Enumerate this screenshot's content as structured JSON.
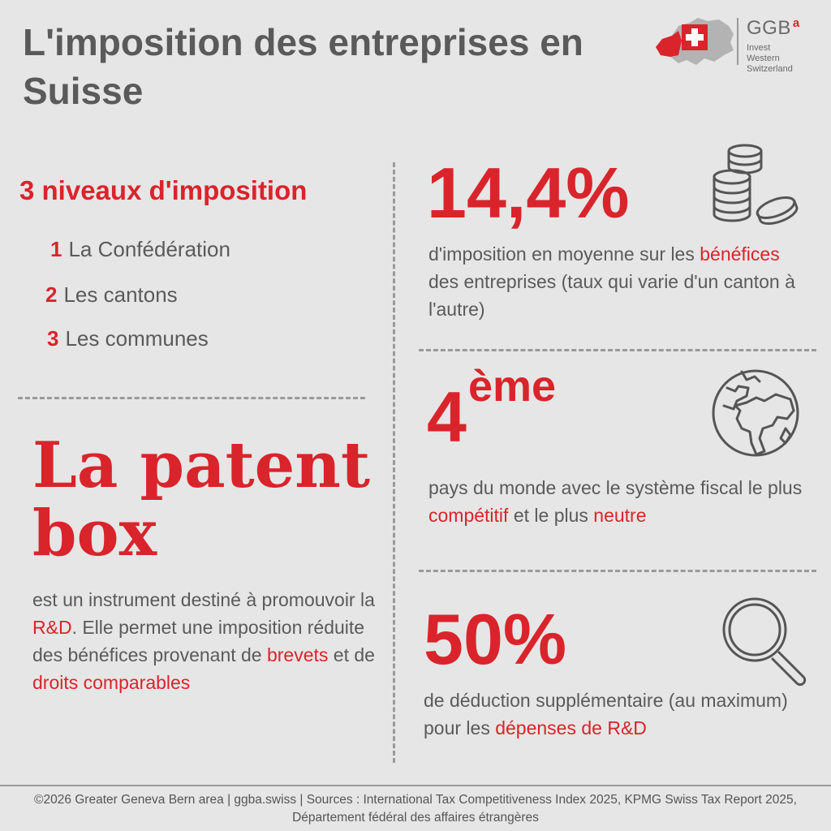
{
  "title": "L'imposition des entreprises en Suisse",
  "logo": {
    "name": "GGB",
    "superscript": "a",
    "tagline": [
      "Invest",
      "Western",
      "Switzerland"
    ]
  },
  "levels": {
    "heading": "3 niveaux d'imposition",
    "items": [
      {
        "num": "1",
        "label": "La Confédération"
      },
      {
        "num": "2",
        "label": "Les cantons"
      },
      {
        "num": "3",
        "label": "Les communes"
      }
    ]
  },
  "patent": {
    "line1": "La patent",
    "line2": "box",
    "desc": [
      {
        "text": "est un instrument destiné à promouvoir la ",
        "highlight": false
      },
      {
        "text": "R&D",
        "highlight": true
      },
      {
        "text": ". Elle permet une imposition réduite des bénéfices provenant de ",
        "highlight": false
      },
      {
        "text": "brevets",
        "highlight": true
      },
      {
        "text": " et de ",
        "highlight": false
      },
      {
        "text": "droits comparables",
        "highlight": true
      }
    ]
  },
  "stats": [
    {
      "value": "14,4%",
      "icon": "coins-icon",
      "desc": [
        {
          "text": "d'imposition en moyenne sur les ",
          "highlight": false
        },
        {
          "text": "bénéfices",
          "highlight": true
        },
        {
          "text": " des entreprises (taux qui varie d'un canton à l'autre)",
          "highlight": false
        }
      ]
    },
    {
      "value": "4",
      "superscript": "ème",
      "icon": "globe-icon",
      "desc": [
        {
          "text": "pays du monde avec le système fiscal le plus ",
          "highlight": false
        },
        {
          "text": "compétitif",
          "highlight": true
        },
        {
          "text": " et le plus ",
          "highlight": false
        },
        {
          "text": "neutre",
          "highlight": true
        }
      ]
    },
    {
      "value": "50%",
      "icon": "magnifier-icon",
      "desc": [
        {
          "text": "de déduction supplémentaire (au maximum) pour les ",
          "highlight": false
        },
        {
          "text": "dépenses de R&D",
          "highlight": true
        }
      ]
    }
  ],
  "footer": "©2026 Greater Geneva Bern area | ggba.swiss | Sources : International Tax Competitiveness Index 2025, KPMG Swiss Tax Report 2025, Département fédéral des affaires étrangères",
  "colors": {
    "accent": "#d9242b",
    "text": "#555555",
    "background": "#e6e6e6"
  }
}
